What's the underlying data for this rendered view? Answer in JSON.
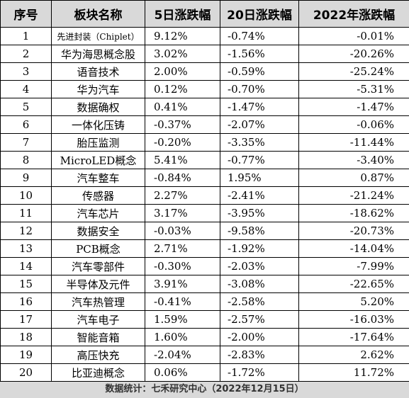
{
  "headers": [
    "序号",
    "板块名称",
    "5日涨跌幅",
    "20日涨跌幅",
    "2022年涨跌幅"
  ],
  "rows": [
    {
      "no": "1",
      "name": "先进封装（Chiplet）",
      "d5": "9.12%",
      "d20": "-0.74%",
      "y2022": "-0.01%"
    },
    {
      "no": "2",
      "name": "华为海思概念股",
      "d5": "3.02%",
      "d20": "-1.56%",
      "y2022": "-20.26%"
    },
    {
      "no": "3",
      "name": "语音技术",
      "d5": "2.00%",
      "d20": "-0.59%",
      "y2022": "-25.24%"
    },
    {
      "no": "4",
      "name": "华为汽车",
      "d5": "0.12%",
      "d20": "-0.70%",
      "y2022": "-5.31%"
    },
    {
      "no": "5",
      "name": "数据确权",
      "d5": "0.41%",
      "d20": "-1.47%",
      "y2022": "-1.47%"
    },
    {
      "no": "6",
      "name": "一体化压铸",
      "d5": "-0.37%",
      "d20": "-2.07%",
      "y2022": "-0.06%"
    },
    {
      "no": "7",
      "name": "胎压监测",
      "d5": "-0.20%",
      "d20": "-3.35%",
      "y2022": "-11.44%"
    },
    {
      "no": "8",
      "name": "MicroLED概念",
      "d5": "5.41%",
      "d20": "-0.77%",
      "y2022": "-3.40%"
    },
    {
      "no": "9",
      "name": "汽车整车",
      "d5": "-0.84%",
      "d20": "1.95%",
      "y2022": "0.87%"
    },
    {
      "no": "10",
      "name": "传感器",
      "d5": "2.27%",
      "d20": "-2.41%",
      "y2022": "-21.24%"
    },
    {
      "no": "11",
      "name": "汽车芯片",
      "d5": "3.17%",
      "d20": "-3.95%",
      "y2022": "-18.62%"
    },
    {
      "no": "12",
      "name": "数据安全",
      "d5": "-0.03%",
      "d20": "-9.58%",
      "y2022": "-20.73%"
    },
    {
      "no": "13",
      "name": "PCB概念",
      "d5": "2.71%",
      "d20": "-1.92%",
      "y2022": "-14.04%"
    },
    {
      "no": "14",
      "name": "汽车零部件",
      "d5": "-0.30%",
      "d20": "-2.03%",
      "y2022": "-7.99%"
    },
    {
      "no": "15",
      "name": "半导体及元件",
      "d5": "3.91%",
      "d20": "-3.08%",
      "y2022": "-22.65%"
    },
    {
      "no": "16",
      "name": "汽车热管理",
      "d5": "-0.41%",
      "d20": "-2.58%",
      "y2022": "5.20%"
    },
    {
      "no": "17",
      "name": "汽车电子",
      "d5": "1.59%",
      "d20": "-2.57%",
      "y2022": "-16.03%"
    },
    {
      "no": "18",
      "name": "智能音箱",
      "d5": "1.60%",
      "d20": "-2.00%",
      "y2022": "-17.64%"
    },
    {
      "no": "19",
      "name": "高压快充",
      "d5": "-2.04%",
      "d20": "-2.83%",
      "y2022": "2.62%"
    },
    {
      "no": "20",
      "name": "比亚迪概念",
      "d5": "0.06%",
      "d20": "-1.72%",
      "y2022": "11.72%"
    }
  ],
  "footer": "数据统计：七禾研究中心（2022年12月15日）"
}
